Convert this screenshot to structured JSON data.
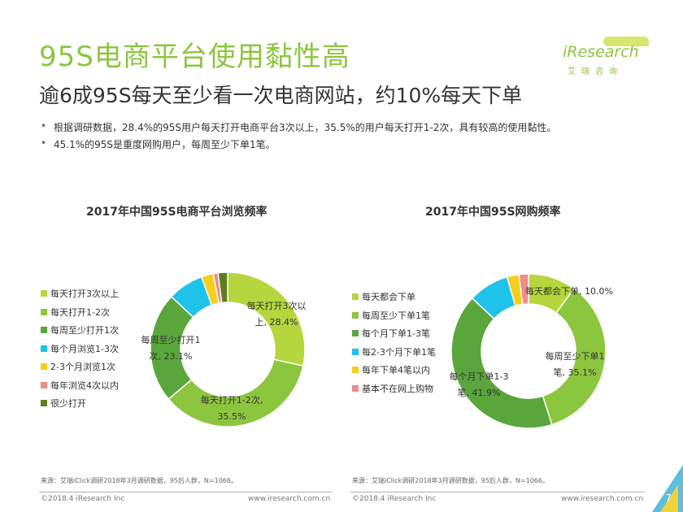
{
  "header": {
    "title": "95S电商平台使用黏性高",
    "subtitle": "逾6成95S每天至少看一次电商网站，约10%每天下单"
  },
  "logo": {
    "main": "iResearch",
    "sub": "艾瑞咨询"
  },
  "bullets": [
    "根据调研数据，28.4%的95S用户每天打开电商平台3次以上，35.5%的用户每天打开1-2次，具有较高的使用黏性。",
    "45.1%的95S是重度网购用户，每周至少下单1笔。"
  ],
  "bullet_symbol": "•",
  "chart_data": [
    {
      "type": "pie",
      "title": "2017年中国95S电商平台浏览频率",
      "series": [
        {
          "name": "每天打开3次以上",
          "value": 28.4,
          "color": "#b5d63c",
          "label": [
            "每天打开3次以",
            "上, 28.4%"
          ]
        },
        {
          "name": "每天打开1-2次",
          "value": 35.5,
          "color": "#8cc63f",
          "label": [
            "每天打开1-2次,",
            "35.5%"
          ]
        },
        {
          "name": "每周至少打开1次",
          "value": 23.1,
          "color": "#5aa63c",
          "label": [
            "每周至少打开1",
            "次, 23.1%"
          ]
        },
        {
          "name": "每个月浏览1-3次",
          "value": 7.5,
          "color": "#1fc2e8",
          "label": []
        },
        {
          "name": "2-3个月浏览1次",
          "value": 2.5,
          "color": "#f6ce1b",
          "label": []
        },
        {
          "name": "每年浏览4次以内",
          "value": 1.0,
          "color": "#ef8c8c",
          "label": []
        },
        {
          "name": "很少打开",
          "value": 2.0,
          "color": "#5e7d1e",
          "label": []
        }
      ],
      "legend_position": "left"
    },
    {
      "type": "pie",
      "title": "2017年中国95S网购频率",
      "series": [
        {
          "name": "每天都会下单",
          "value": 10.0,
          "color": "#b5d63c",
          "label": [
            "每天都会下单, 10.0%"
          ]
        },
        {
          "name": "每周至少下单1笔",
          "value": 35.1,
          "color": "#8cc63f",
          "label": [
            "每周至少下单1",
            "笔, 35.1%"
          ]
        },
        {
          "name": "每个月下单1-3笔",
          "value": 41.9,
          "color": "#5aa63c",
          "label": [
            "每个月下单1-3",
            "笔, 41.9%"
          ]
        },
        {
          "name": "每2-3个月下单1笔",
          "value": 8.5,
          "color": "#1fc2e8",
          "label": []
        },
        {
          "name": "每年下单4笔以内",
          "value": 2.5,
          "color": "#f6ce1b",
          "label": []
        },
        {
          "name": "基本不在网上购物",
          "value": 2.0,
          "color": "#ef8c8c",
          "label": []
        }
      ],
      "legend_position": "left"
    }
  ],
  "sources": [
    "来源：艾瑞iClick调研2018年3月调研数据，95后人群，N=1066。",
    "来源：艾瑞iClick调研2018年3月调研数据，95后人群，N=1066。"
  ],
  "footer": {
    "copyright_left": "©2018.4 iResearch Inc",
    "url_left": "www.iresearch.com.cn",
    "copyright_right": "©2018.4 iResearch Inc",
    "url_right": "www.iresearch.com.cn",
    "page_number": "7"
  }
}
